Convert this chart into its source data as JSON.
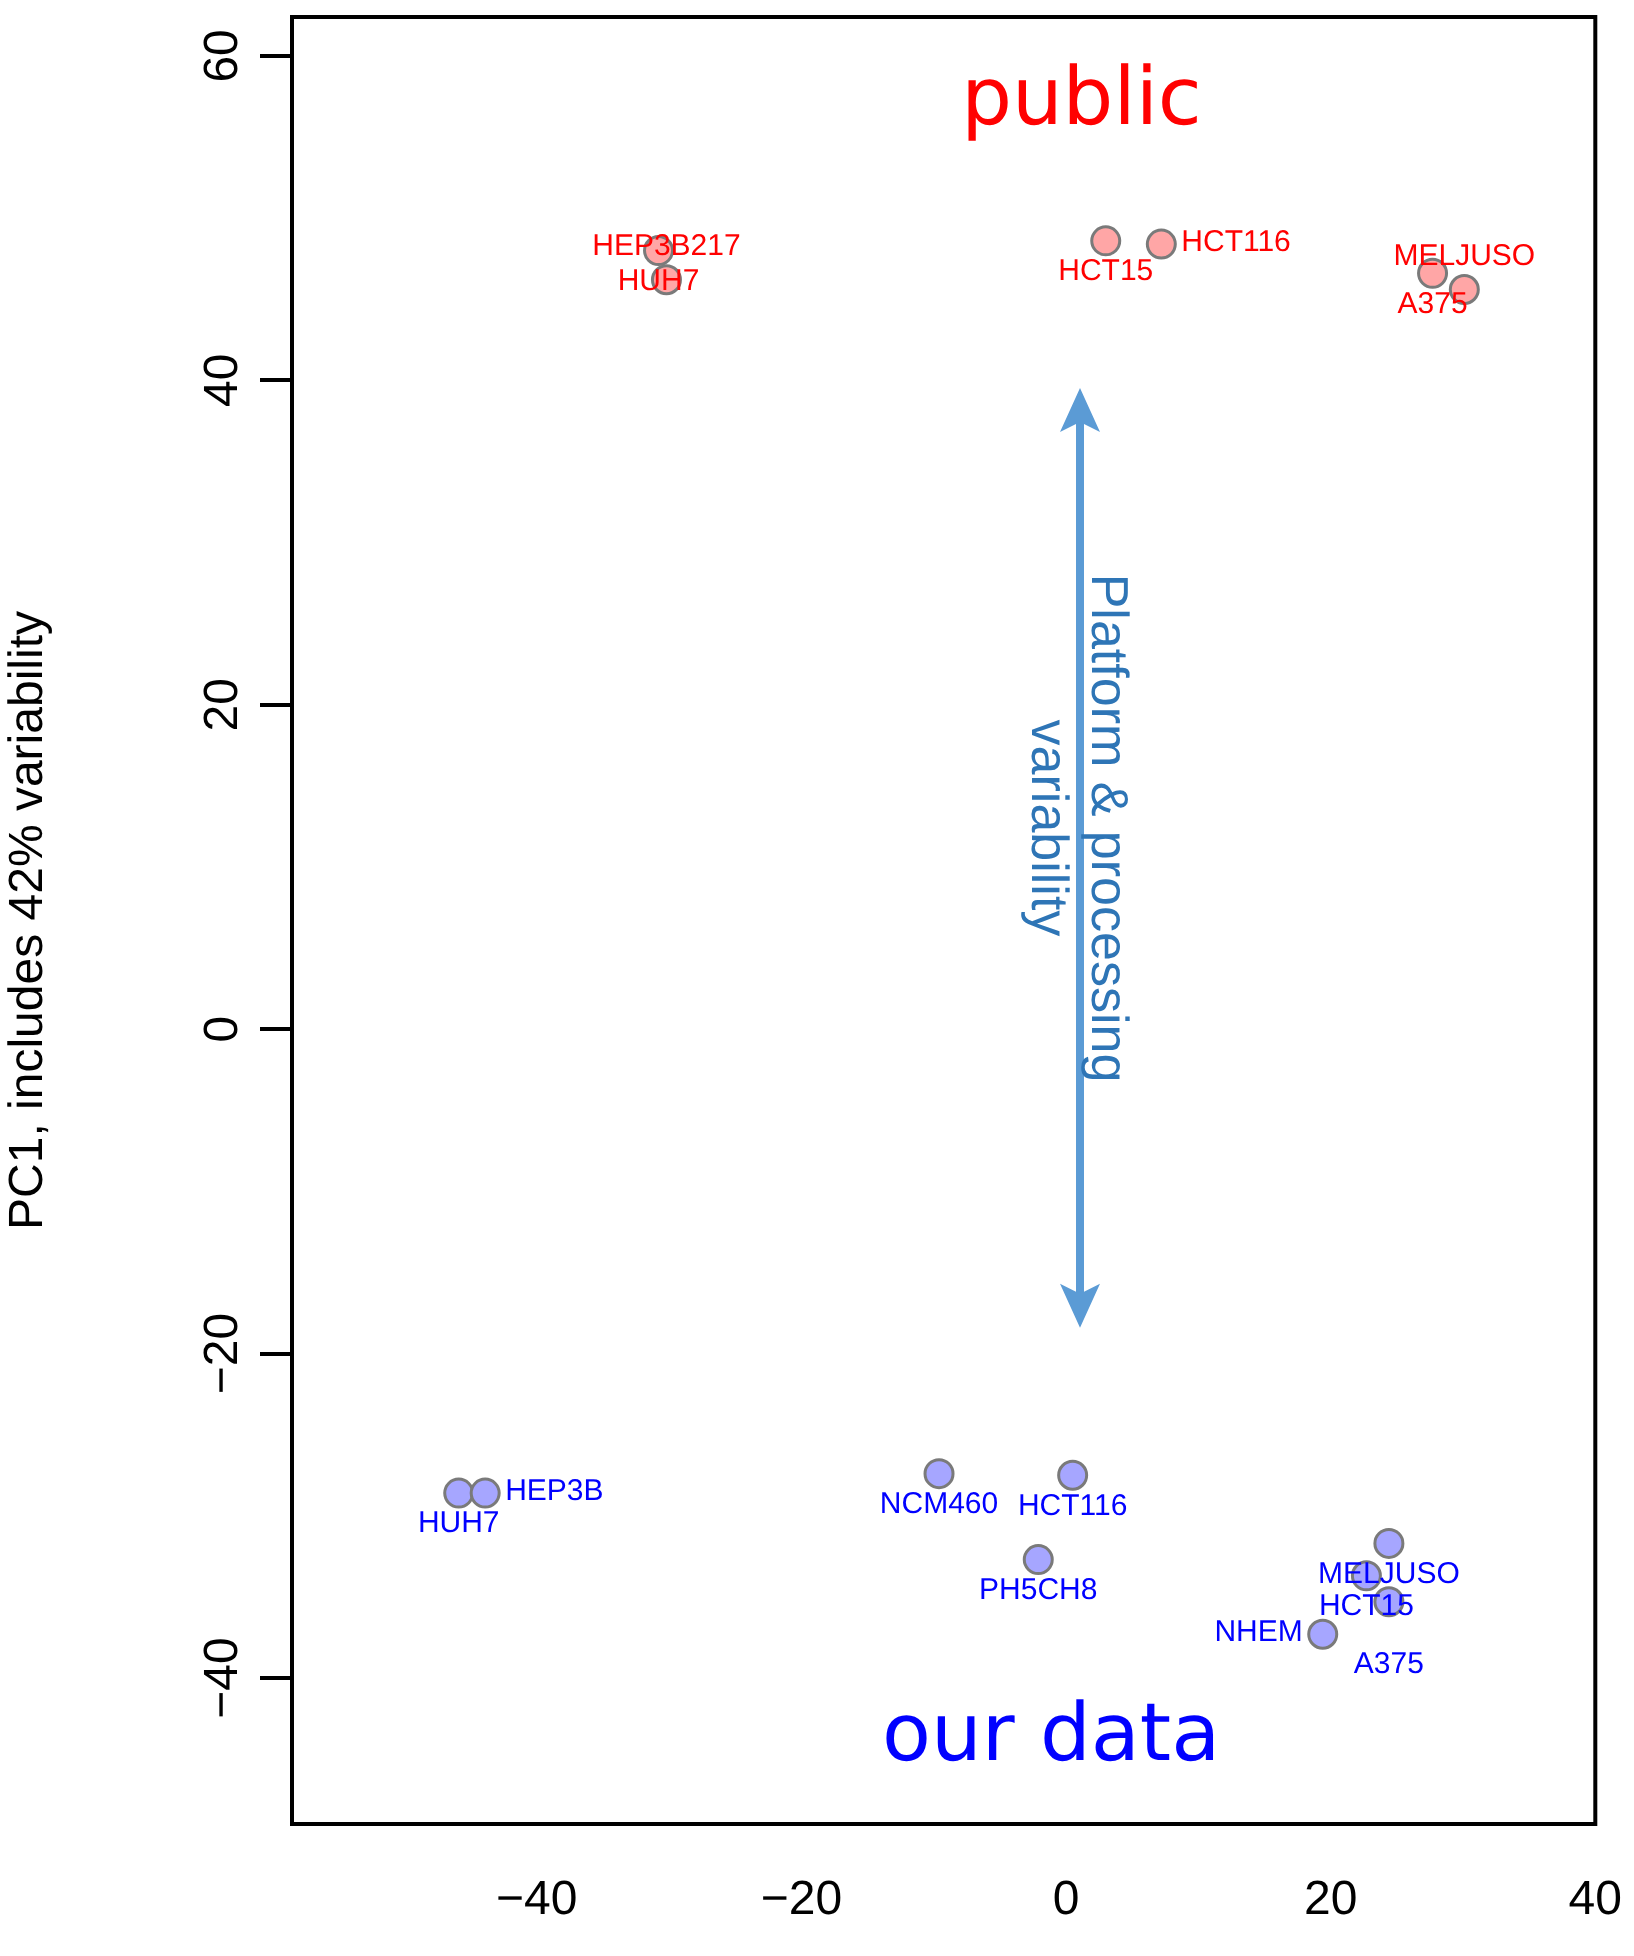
{
  "chart_data": {
    "type": "scatter",
    "ylabel": "PC1, includes 42% variability",
    "xlim": [
      -58.5,
      40
    ],
    "ylim": [
      -49,
      62.4
    ],
    "xticks": [
      -40,
      -20,
      0,
      20,
      40
    ],
    "yticks": [
      -40,
      -20,
      0,
      20,
      40,
      60
    ],
    "grid": false,
    "legend": false,
    "marker": "circle",
    "series": [
      {
        "name": "public",
        "color": "#ffa6a6",
        "x": [
          -30.8,
          -30.2,
          3.0,
          7.2,
          27.7,
          30.1
        ],
        "values": [
          48.0,
          46.2,
          48.6,
          48.4,
          46.6,
          45.6
        ]
      },
      {
        "name": "our data",
        "color": "#a6a6ff",
        "x": [
          -45.9,
          -43.9,
          -9.6,
          0.5,
          -2.1,
          24.4,
          22.7,
          24.4,
          19.4
        ],
        "values": [
          -28.6,
          -28.6,
          -27.4,
          -27.5,
          -32.7,
          -31.7,
          -33.7,
          -35.3,
          -37.3
        ]
      }
    ],
    "annotations": [
      {
        "text": "HUH7",
        "x": -30.8,
        "y": 48.0
      },
      {
        "text": "HEP3B217",
        "x": -30.2,
        "y": 46.2
      },
      {
        "text": "HCT15",
        "x": 3.0,
        "y": 48.6
      },
      {
        "text": "HCT116",
        "x": 7.2,
        "y": 48.4
      },
      {
        "text": "A375",
        "x": 27.7,
        "y": 46.6
      },
      {
        "text": "MELJUSO",
        "x": 30.1,
        "y": 45.6
      },
      {
        "text": "HUH7",
        "x": -45.9,
        "y": -28.6
      },
      {
        "text": "HEP3B",
        "x": -43.9,
        "y": -28.6
      },
      {
        "text": "NCM460",
        "x": -9.6,
        "y": -27.4
      },
      {
        "text": "HCT116",
        "x": 0.5,
        "y": -27.5
      },
      {
        "text": "PH5CH8",
        "x": -2.1,
        "y": -32.7
      },
      {
        "text": "MELJUSO",
        "x": 24.4,
        "y": -31.7
      },
      {
        "text": "HCT15",
        "x": 22.7,
        "y": -33.7
      },
      {
        "text": "A375",
        "x": 24.4,
        "y": -35.3
      },
      {
        "text": "NHEM",
        "x": 19.4,
        "y": -37.3
      },
      "Platform & processing\nvariability"
    ]
  }
}
